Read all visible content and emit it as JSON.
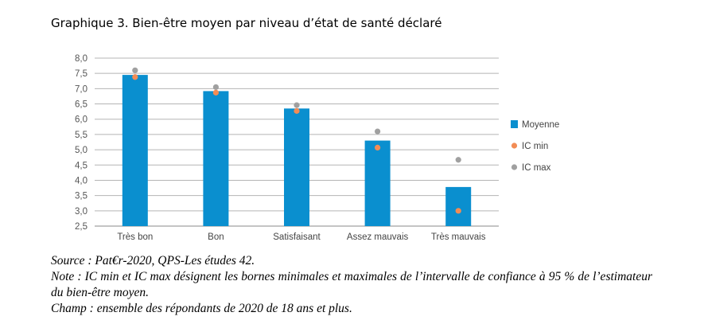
{
  "title": "Graphique 3. Bien-être moyen par niveau d’état de santé déclaré",
  "chart_data": {
    "type": "bar",
    "categories": [
      "Très bon",
      "Bon",
      "Satisfaisant",
      "Assez mauvais",
      "Très mauvais"
    ],
    "series": [
      {
        "name": "Moyenne",
        "type": "bar",
        "values": [
          7.45,
          6.92,
          6.35,
          5.3,
          3.78
        ],
        "color": "#0a8fcf"
      },
      {
        "name": "IC min",
        "type": "point",
        "values": [
          7.38,
          6.87,
          6.27,
          5.07,
          3.0
        ],
        "color": "#f28c55"
      },
      {
        "name": "IC max",
        "type": "point",
        "values": [
          7.6,
          7.05,
          6.46,
          5.6,
          4.67
        ],
        "color": "#a0a0a0"
      }
    ],
    "ylim": [
      2.5,
      8.0
    ],
    "yticks": [
      "8,0",
      "7,5",
      "7,0",
      "6,5",
      "6,0",
      "5,5",
      "5,0",
      "4,5",
      "4,0",
      "3,5",
      "3,0",
      "2,5"
    ],
    "grid": true,
    "legend_position": "right"
  },
  "notes": {
    "source": "Source : Pat€r-2020, QPS-Les études 42.",
    "note": "Note : IC min et IC max désignent les bornes minimales et maximales de l’intervalle de confiance à 95 % de l’estimateur du bien-être moyen.",
    "champ": "Champ : ensemble des répondants de 2020 de 18 ans et plus."
  }
}
